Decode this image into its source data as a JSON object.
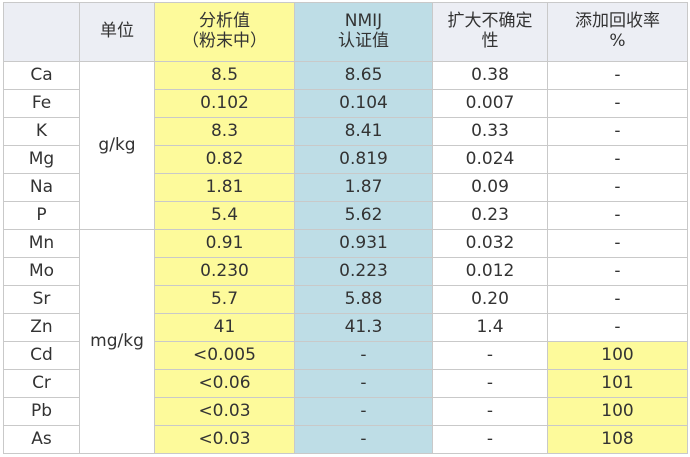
{
  "headers": {
    "unit": "单位",
    "analysis_line1": "分析值",
    "analysis_line2": "（粉末中）",
    "nmij_line1": "NMIJ",
    "nmij_line2": "认证值",
    "uncertainty_line1": "扩大不确定",
    "uncertainty_line2": "性",
    "recovery_line1": "添加回收率",
    "recovery_line2": "%"
  },
  "units": {
    "g_per_kg": "g/kg",
    "mg_per_kg": "mg/kg"
  },
  "rows": [
    {
      "element": "Ca",
      "analysis": "8.5",
      "nmij": "8.65",
      "uncertainty": "0.38",
      "recovery": "-"
    },
    {
      "element": "Fe",
      "analysis": "0.102",
      "nmij": "0.104",
      "uncertainty": "0.007",
      "recovery": "-"
    },
    {
      "element": "K",
      "analysis": "8.3",
      "nmij": "8.41",
      "uncertainty": "0.33",
      "recovery": "-"
    },
    {
      "element": "Mg",
      "analysis": "0.82",
      "nmij": "0.819",
      "uncertainty": "0.024",
      "recovery": "-"
    },
    {
      "element": "Na",
      "analysis": "1.81",
      "nmij": "1.87",
      "uncertainty": "0.09",
      "recovery": "-"
    },
    {
      "element": "P",
      "analysis": "5.4",
      "nmij": "5.62",
      "uncertainty": "0.23",
      "recovery": "-"
    },
    {
      "element": "Mn",
      "analysis": "0.91",
      "nmij": "0.931",
      "uncertainty": "0.032",
      "recovery": "-"
    },
    {
      "element": "Mo",
      "analysis": "0.230",
      "nmij": "0.223",
      "uncertainty": "0.012",
      "recovery": "-"
    },
    {
      "element": "Sr",
      "analysis": "5.7",
      "nmij": "5.88",
      "uncertainty": "0.20",
      "recovery": "-"
    },
    {
      "element": "Zn",
      "analysis": "41",
      "nmij": "41.3",
      "uncertainty": "1.4",
      "recovery": "-"
    },
    {
      "element": "Cd",
      "analysis": "<0.005",
      "nmij": "-",
      "uncertainty": "-",
      "recovery": "100"
    },
    {
      "element": "Cr",
      "analysis": "<0.06",
      "nmij": "-",
      "uncertainty": "-",
      "recovery": "101"
    },
    {
      "element": "Pb",
      "analysis": "<0.03",
      "nmij": "-",
      "uncertainty": "-",
      "recovery": "100"
    },
    {
      "element": "As",
      "analysis": "<0.03",
      "nmij": "-",
      "uncertainty": "-",
      "recovery": "108"
    }
  ],
  "colors": {
    "header_grey": "#eceef4",
    "analysis_yellow": "#fdfa9b",
    "nmij_blue": "#bedde6",
    "grid": "#c9c9c9",
    "text": "#333333"
  }
}
